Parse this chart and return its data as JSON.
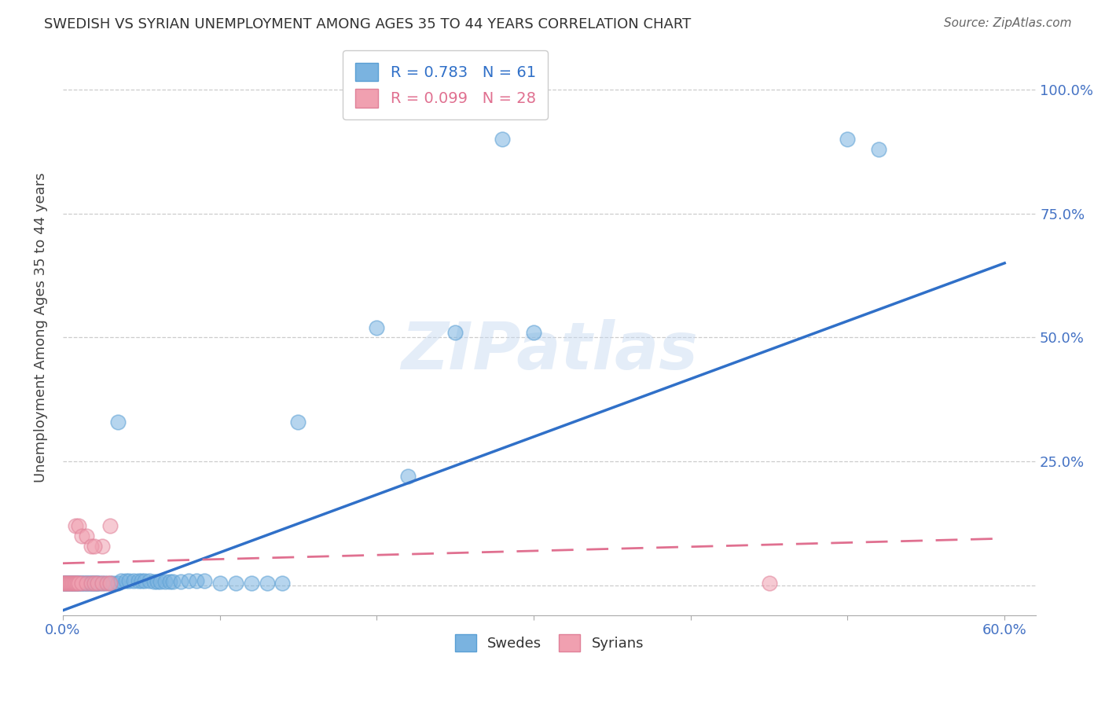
{
  "title": "SWEDISH VS SYRIAN UNEMPLOYMENT AMONG AGES 35 TO 44 YEARS CORRELATION CHART",
  "source": "Source: ZipAtlas.com",
  "ylabel": "Unemployment Among Ages 35 to 44 years",
  "swede_color": "#7ab3e0",
  "syrian_color": "#f0a0b0",
  "swede_edge_color": "#5a9fd4",
  "syrian_edge_color": "#e08098",
  "swede_line_color": "#3070c8",
  "syrian_line_color": "#e07090",
  "swede_R": 0.783,
  "swede_N": 61,
  "syrian_R": 0.099,
  "syrian_N": 28,
  "swede_line_x0": 0.0,
  "swede_line_y0": -0.05,
  "swede_line_x1": 0.6,
  "swede_line_y1": 0.65,
  "syrian_line_x0": 0.0,
  "syrian_line_y0": 0.045,
  "syrian_line_x1": 0.6,
  "syrian_line_y1": 0.095,
  "swedes_x": [
    0.0,
    0.001,
    0.002,
    0.003,
    0.004,
    0.005,
    0.006,
    0.007,
    0.008,
    0.009,
    0.01,
    0.011,
    0.012,
    0.013,
    0.014,
    0.015,
    0.016,
    0.017,
    0.018,
    0.019,
    0.02,
    0.021,
    0.022,
    0.023,
    0.025,
    0.027,
    0.03,
    0.032,
    0.035,
    0.037,
    0.04,
    0.042,
    0.045,
    0.048,
    0.05,
    0.052,
    0.055,
    0.058,
    0.06,
    0.062,
    0.065,
    0.068,
    0.07,
    0.075,
    0.08,
    0.085,
    0.09,
    0.1,
    0.11,
    0.12,
    0.13,
    0.14,
    0.2,
    0.25,
    0.28,
    0.3,
    0.5,
    0.52,
    0.035,
    0.22,
    0.15
  ],
  "swedes_y": [
    0.005,
    0.005,
    0.005,
    0.005,
    0.005,
    0.005,
    0.005,
    0.005,
    0.005,
    0.005,
    0.005,
    0.005,
    0.005,
    0.005,
    0.005,
    0.005,
    0.005,
    0.005,
    0.005,
    0.005,
    0.005,
    0.005,
    0.005,
    0.005,
    0.005,
    0.005,
    0.005,
    0.005,
    0.005,
    0.01,
    0.01,
    0.01,
    0.01,
    0.01,
    0.01,
    0.01,
    0.01,
    0.008,
    0.008,
    0.008,
    0.008,
    0.008,
    0.008,
    0.008,
    0.01,
    0.01,
    0.01,
    0.005,
    0.005,
    0.005,
    0.005,
    0.005,
    0.52,
    0.51,
    0.9,
    0.51,
    0.9,
    0.88,
    0.33,
    0.22,
    0.33
  ],
  "syrians_x": [
    0.0,
    0.001,
    0.002,
    0.003,
    0.004,
    0.005,
    0.006,
    0.007,
    0.008,
    0.009,
    0.01,
    0.012,
    0.015,
    0.018,
    0.02,
    0.022,
    0.025,
    0.028,
    0.03,
    0.025,
    0.03,
    0.008,
    0.01,
    0.012,
    0.015,
    0.018,
    0.02,
    0.45
  ],
  "syrians_y": [
    0.005,
    0.005,
    0.005,
    0.005,
    0.005,
    0.005,
    0.005,
    0.005,
    0.005,
    0.005,
    0.005,
    0.005,
    0.005,
    0.005,
    0.005,
    0.005,
    0.005,
    0.005,
    0.005,
    0.08,
    0.12,
    0.12,
    0.12,
    0.1,
    0.1,
    0.08,
    0.08,
    0.005
  ],
  "xlim": [
    0.0,
    0.62
  ],
  "ylim": [
    -0.06,
    1.1
  ],
  "yticks": [
    0.0,
    0.25,
    0.5,
    0.75,
    1.0
  ],
  "ytick_labels": [
    "",
    "25.0%",
    "50.0%",
    "75.0%",
    "100.0%"
  ],
  "xtick_positions": [
    0.0,
    0.1,
    0.2,
    0.3,
    0.4,
    0.5,
    0.6
  ],
  "watermark_text": "ZIPatlas",
  "background_color": "#ffffff",
  "grid_color": "#cccccc",
  "axis_color": "#aaaaaa",
  "label_color": "#4472c4",
  "title_color": "#333333",
  "source_color": "#666666",
  "ylabel_color": "#444444"
}
